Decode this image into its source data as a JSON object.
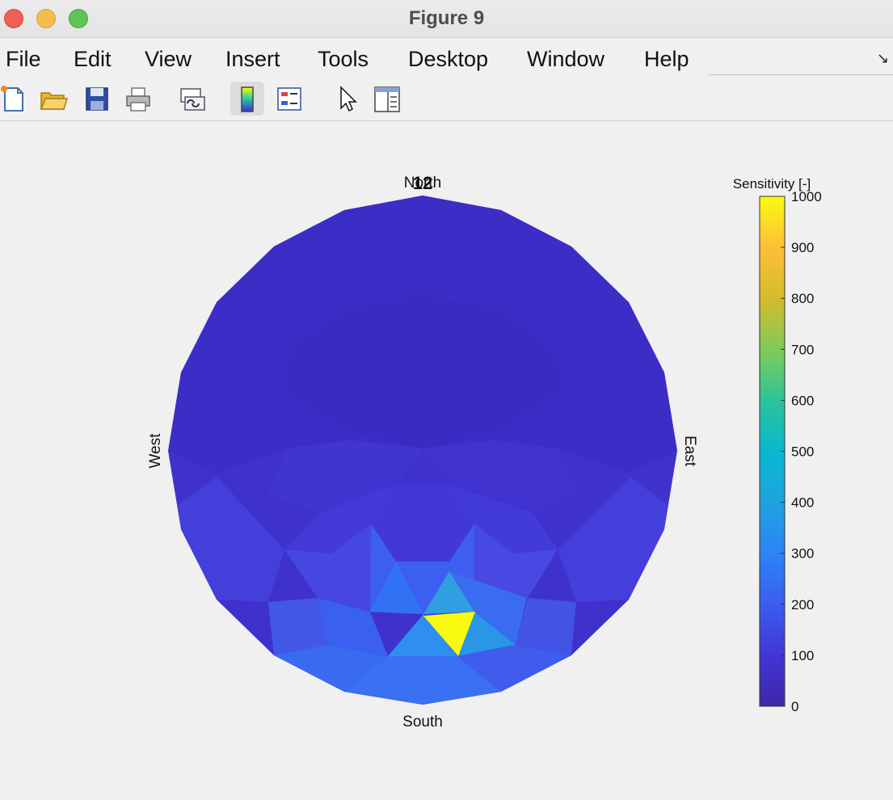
{
  "window": {
    "title": "Figure 9"
  },
  "menu": [
    "File",
    "Edit",
    "View",
    "Insert",
    "Tools",
    "Desktop",
    "Window",
    "Help"
  ],
  "toolbar": {
    "buttons": [
      {
        "name": "new-figure-icon"
      },
      {
        "name": "open-file-icon"
      },
      {
        "name": "save-icon"
      },
      {
        "name": "print-icon"
      },
      {
        "name": "link-plot-icon"
      },
      {
        "name": "colorbar-icon",
        "active": true
      },
      {
        "name": "legend-icon"
      },
      {
        "name": "pointer-icon"
      },
      {
        "name": "property-editor-icon"
      }
    ]
  },
  "plot": {
    "compass": {
      "north": "North",
      "south": "South",
      "east": "East",
      "west": "West"
    },
    "overlap_label": "12",
    "colors": {
      "low": "#3e2fcc",
      "high": "#f9fb0e"
    }
  },
  "colorbar": {
    "title": "Sensitivity [-]",
    "min": 0,
    "max": 1000,
    "ticks": [
      "0",
      "100",
      "200",
      "300",
      "400",
      "500",
      "600",
      "700",
      "800",
      "900",
      "1000"
    ]
  }
}
